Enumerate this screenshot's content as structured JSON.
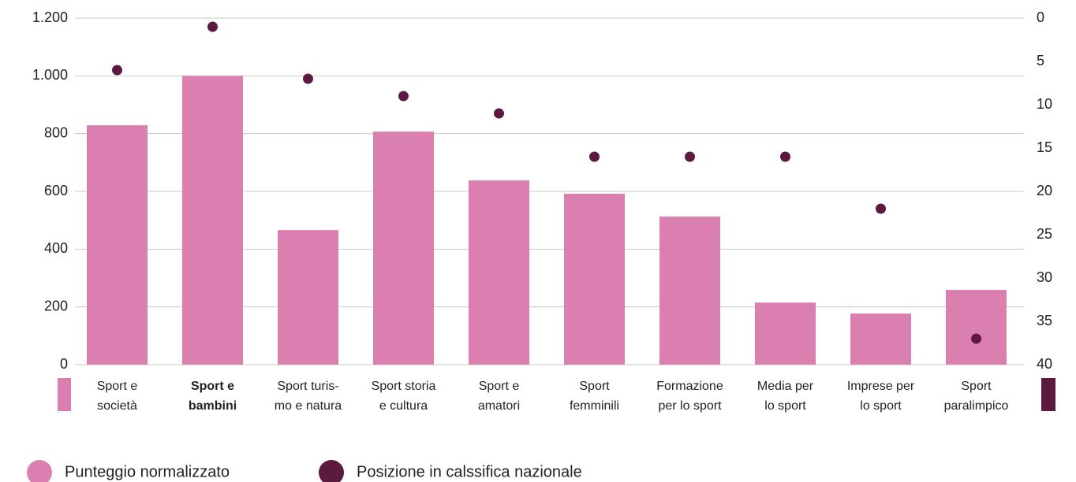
{
  "chart_data": {
    "type": "bar",
    "categories": [
      [
        "Sport e",
        "società"
      ],
      [
        "Sport e",
        "bambini"
      ],
      [
        "Sport turis-",
        "mo e natura"
      ],
      [
        "Sport storia",
        "e cultura"
      ],
      [
        "Sport e",
        "amatori"
      ],
      [
        "Sport",
        "femminili"
      ],
      [
        "Formazione",
        "per lo sport"
      ],
      [
        "Media per",
        "lo sport"
      ],
      [
        "Imprese per",
        "lo sport"
      ],
      [
        "Sport",
        "paralimpico"
      ]
    ],
    "bold_categories": [
      1
    ],
    "series": [
      {
        "name": "Punteggio normalizzato",
        "type": "bar",
        "color": "#db7fb0",
        "values": [
          829,
          1000,
          466,
          807,
          638,
          592,
          513,
          215,
          177,
          259
        ]
      },
      {
        "name": "Posizione in calssifica nazionale",
        "type": "scatter",
        "axis": "y2",
        "color": "#5c1a40",
        "values": [
          6,
          1,
          7,
          9,
          11,
          16,
          16,
          16,
          22,
          37
        ]
      }
    ],
    "ylim": [
      0,
      1200
    ],
    "yticks": [
      0,
      200,
      400,
      600,
      800,
      {
        "value": 1000,
        "label": "1.000"
      },
      {
        "value": 1200,
        "label": "1.200"
      }
    ],
    "y2lim": [
      0,
      40
    ],
    "y2_inverted": true,
    "y2ticks": [
      0,
      5,
      10,
      15,
      20,
      25,
      30,
      35,
      40
    ],
    "grid": true,
    "legend": "bottom-left"
  }
}
